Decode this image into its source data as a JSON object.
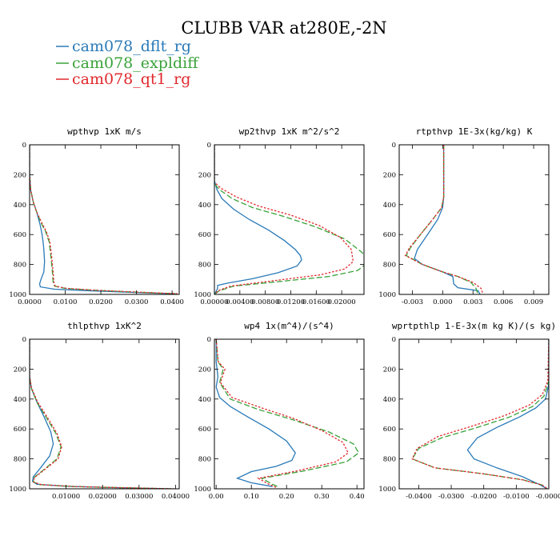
{
  "figure": {
    "title": "CLUBB VAR at280E,-2N",
    "legend": [
      {
        "name": "cam078_dflt_rg",
        "color": "#2a7ab8",
        "dash": "none"
      },
      {
        "name": "cam078_expldiff",
        "color": "#3aa23a",
        "dash": "7 3"
      },
      {
        "name": "cam078_qt1_rg",
        "color": "#e0282c",
        "dash": "2.5 2"
      }
    ]
  },
  "chart_data": [
    {
      "type": "line",
      "title": "wpthvp  1xK m/s",
      "xlim": [
        0,
        0.042
      ],
      "ylim": [
        1000,
        0
      ],
      "xticks": [
        0,
        0.01,
        0.02,
        0.03,
        0.04
      ],
      "xtick_labels": [
        "0.0000",
        "0.0100",
        "0.0200",
        "0.0300",
        "0.0400"
      ],
      "yticks": [
        0,
        200,
        400,
        600,
        800,
        1000
      ],
      "ytick_labels": [
        "0",
        "200",
        "400",
        "600",
        "800",
        "1000"
      ],
      "series": [
        {
          "name": "cam078_dflt_rg",
          "x": [
            0,
            0,
            0.0003,
            0.001,
            0.002,
            0.003,
            0.0035,
            0.0038,
            0.004,
            0.0042,
            0.004,
            0.0032,
            0.0028,
            0.003,
            0.007,
            0.016,
            0.025,
            0.033,
            0.04
          ],
          "y": [
            0,
            200,
            300,
            380,
            450,
            540,
            600,
            650,
            700,
            780,
            850,
            900,
            930,
            950,
            965,
            975,
            983,
            990,
            995
          ]
        },
        {
          "name": "cam078_expldiff",
          "x": [
            0,
            0,
            0.0003,
            0.001,
            0.002,
            0.0032,
            0.0045,
            0.0055,
            0.006,
            0.0064,
            0.0066,
            0.007,
            0.01,
            0.018,
            0.027,
            0.035,
            0.041
          ],
          "y": [
            0,
            200,
            300,
            380,
            450,
            520,
            580,
            650,
            750,
            850,
            920,
            945,
            960,
            972,
            982,
            990,
            995
          ]
        },
        {
          "name": "cam078_qt1_rg",
          "x": [
            0,
            0,
            0.0003,
            0.001,
            0.002,
            0.0034,
            0.0047,
            0.0057,
            0.0062,
            0.0066,
            0.0068,
            0.0072,
            0.0105,
            0.0185,
            0.0275,
            0.0355,
            0.0415
          ],
          "y": [
            0,
            200,
            300,
            380,
            450,
            520,
            580,
            650,
            750,
            850,
            920,
            945,
            960,
            972,
            982,
            990,
            995
          ]
        }
      ]
    },
    {
      "type": "line",
      "title": "wp2thvp  1xK m^2/s^2",
      "xlim": [
        0,
        0.0235
      ],
      "ylim": [
        1000,
        0
      ],
      "xticks": [
        0,
        0.004,
        0.008,
        0.012,
        0.016,
        0.02
      ],
      "xtick_labels": [
        "0.00000",
        "0.00400",
        "0.00800",
        "0.01200",
        "0.01600",
        "0.02000"
      ],
      "yticks": [
        0,
        200,
        400,
        600,
        800,
        1000
      ],
      "ytick_labels": [
        "0",
        "200",
        "400",
        "600",
        "800",
        "1000"
      ],
      "series": [
        {
          "name": "cam078_dflt_rg",
          "x": [
            0,
            0,
            0.0004,
            0.0012,
            0.003,
            0.0055,
            0.0085,
            0.011,
            0.0127,
            0.0135,
            0.0137,
            0.013,
            0.01,
            0.006,
            0.002,
            0.0005,
            0.0005,
            0.0002,
            0
          ],
          "y": [
            0,
            240,
            300,
            360,
            430,
            500,
            570,
            640,
            700,
            740,
            770,
            810,
            855,
            895,
            925,
            940,
            960,
            985,
            1000
          ]
        },
        {
          "name": "cam078_expldiff",
          "x": [
            0,
            0,
            0.0008,
            0.0028,
            0.006,
            0.011,
            0.016,
            0.0205,
            0.0232,
            0.024,
            0.0225,
            0.018,
            0.01,
            0.003,
            0.0008,
            0
          ],
          "y": [
            0,
            260,
            300,
            360,
            420,
            480,
            550,
            630,
            720,
            790,
            840,
            880,
            915,
            945,
            975,
            1000
          ]
        },
        {
          "name": "cam078_qt1_rg",
          "x": [
            0,
            0,
            0.001,
            0.0035,
            0.007,
            0.012,
            0.0165,
            0.0198,
            0.0215,
            0.0218,
            0.0205,
            0.0165,
            0.009,
            0.0025,
            0.0006,
            0
          ],
          "y": [
            0,
            250,
            290,
            350,
            410,
            470,
            540,
            620,
            700,
            780,
            830,
            870,
            910,
            945,
            975,
            1000
          ]
        }
      ]
    },
    {
      "type": "line",
      "title": "rtpthvp  1E-3x(kg/kg) K",
      "xlim": [
        -0.0043,
        0.0105
      ],
      "ylim": [
        1000,
        0
      ],
      "xticks": [
        -0.003,
        0,
        0.003,
        0.006,
        0.009
      ],
      "xtick_labels": [
        "-0.003",
        "0.000",
        "0.003",
        "0.006",
        "0.009"
      ],
      "yticks": [
        0,
        200,
        400,
        600,
        800,
        1000
      ],
      "ytick_labels": [
        "0",
        "200",
        "400",
        "600",
        "800",
        "1000"
      ],
      "series": [
        {
          "name": "cam078_dflt_rg",
          "x": [
            0.0001,
            0.0001,
            0,
            -0.0005,
            -0.0015,
            -0.0025,
            -0.0028,
            -0.002,
            0,
            0.001,
            0.0011,
            0.0015,
            0.0035,
            0.0037
          ],
          "y": [
            0,
            350,
            420,
            500,
            600,
            700,
            760,
            800,
            850,
            880,
            930,
            955,
            975,
            1000
          ]
        },
        {
          "name": "cam078_expldiff",
          "x": [
            0.0001,
            0.0001,
            -0.0001,
            -0.001,
            -0.0022,
            -0.0032,
            -0.0036,
            -0.002,
            0,
            0.0015,
            0.0028,
            0.0033,
            0.0035
          ],
          "y": [
            0,
            350,
            420,
            500,
            600,
            690,
            740,
            800,
            850,
            880,
            920,
            960,
            1000
          ]
        },
        {
          "name": "cam078_qt1_rg",
          "x": [
            0.0001,
            0.0001,
            -0.0001,
            -0.001,
            -0.0022,
            -0.0033,
            -0.0037,
            -0.002,
            0,
            0.0015,
            0.003,
            0.0038,
            0.004
          ],
          "y": [
            0,
            350,
            420,
            500,
            600,
            690,
            740,
            800,
            850,
            880,
            920,
            960,
            1000
          ]
        }
      ]
    },
    {
      "type": "line",
      "title": "thlpthvp  1xK^2",
      "xlim": [
        0,
        0.041
      ],
      "ylim": [
        1000,
        0
      ],
      "xticks": [
        0.01,
        0.02,
        0.03,
        0.04
      ],
      "xtick_labels": [
        "0.01000",
        "0.02000",
        "0.03000",
        "0.04000"
      ],
      "yticks": [
        0,
        200,
        400,
        600,
        800,
        1000
      ],
      "ytick_labels": [
        "0",
        "200",
        "400",
        "600",
        "800",
        "1000"
      ],
      "series": [
        {
          "name": "cam078_dflt_rg",
          "x": [
            0,
            0,
            0.0005,
            0.002,
            0.004,
            0.0058,
            0.0065,
            0.0055,
            0.003,
            0.001,
            0.0008,
            0.002,
            0.01,
            0.02,
            0.03,
            0.038
          ],
          "y": [
            0,
            250,
            330,
            420,
            520,
            620,
            700,
            780,
            860,
            920,
            950,
            970,
            983,
            990,
            995,
            1000
          ]
        },
        {
          "name": "cam078_expldiff",
          "x": [
            0,
            0,
            0.0005,
            0.002,
            0.0045,
            0.0072,
            0.0086,
            0.0075,
            0.004,
            0.0012,
            0.001,
            0.003,
            0.012,
            0.022,
            0.032,
            0.0395
          ],
          "y": [
            0,
            250,
            330,
            420,
            520,
            630,
            720,
            800,
            870,
            925,
            955,
            972,
            985,
            991,
            996,
            1000
          ]
        },
        {
          "name": "cam078_qt1_rg",
          "x": [
            0,
            0,
            0.0006,
            0.0022,
            0.0048,
            0.0075,
            0.0088,
            0.0078,
            0.0042,
            0.0013,
            0.0011,
            0.0032,
            0.0125,
            0.0225,
            0.0325,
            0.04
          ],
          "y": [
            0,
            250,
            330,
            420,
            520,
            630,
            720,
            800,
            870,
            925,
            955,
            972,
            985,
            991,
            996,
            1000
          ]
        }
      ]
    },
    {
      "type": "line",
      "title": "wp4  1x(m^4)/(s^4)",
      "xlim": [
        -0.005,
        0.42
      ],
      "ylim": [
        1000,
        0
      ],
      "xticks": [
        0,
        0.1,
        0.2,
        0.3,
        0.4
      ],
      "xtick_labels": [
        "0.00",
        "0.10",
        "0.20",
        "0.30",
        "0.40"
      ],
      "yticks": [
        0,
        200,
        400,
        600,
        800,
        1000
      ],
      "ytick_labels": [
        "0",
        "200",
        "400",
        "600",
        "800",
        "1000"
      ],
      "series": [
        {
          "name": "cam078_dflt_rg",
          "x": [
            0,
            0,
            0.005,
            0,
            0.01,
            0.04,
            0.09,
            0.15,
            0.2,
            0.225,
            0.215,
            0.17,
            0.1,
            0.06,
            0.1,
            0.16
          ],
          "y": [
            0,
            150,
            250,
            320,
            390,
            450,
            520,
            600,
            680,
            760,
            810,
            850,
            885,
            930,
            960,
            985
          ]
        },
        {
          "name": "cam078_expldiff",
          "x": [
            0,
            0.005,
            0.02,
            0.01,
            0.04,
            0.12,
            0.22,
            0.32,
            0.39,
            0.405,
            0.37,
            0.25,
            0.13,
            0.16,
            0.18
          ],
          "y": [
            0,
            150,
            200,
            290,
            400,
            470,
            540,
            620,
            700,
            760,
            820,
            880,
            930,
            970,
            990
          ]
        },
        {
          "name": "cam078_qt1_rg",
          "x": [
            0,
            0.006,
            0.025,
            0.012,
            0.045,
            0.13,
            0.22,
            0.3,
            0.36,
            0.375,
            0.34,
            0.23,
            0.12,
            0.15,
            0.17
          ],
          "y": [
            0,
            150,
            200,
            290,
            390,
            460,
            530,
            610,
            690,
            760,
            820,
            880,
            930,
            970,
            990
          ]
        }
      ]
    },
    {
      "type": "line",
      "title": "wprtpthlp  1-E-3x(m kg K)/(s kg)",
      "xlim": [
        -0.046,
        0
      ],
      "ylim": [
        1000,
        0
      ],
      "xticks": [
        -0.04,
        -0.03,
        -0.02,
        -0.01,
        0
      ],
      "xtick_labels": [
        "-0.0400",
        "-0.0300",
        "-0.0200",
        "-0.0100",
        "-0.0000"
      ],
      "yticks": [
        0,
        200,
        400,
        600,
        800,
        1000
      ],
      "ytick_labels": [
        "0",
        "200",
        "400",
        "600",
        "800",
        "1000"
      ],
      "series": [
        {
          "name": "cam078_dflt_rg",
          "x": [
            0,
            0,
            -0.001,
            -0.004,
            -0.009,
            -0.016,
            -0.022,
            -0.025,
            -0.023,
            -0.016,
            -0.008,
            -0.003,
            -0.0005
          ],
          "y": [
            0,
            300,
            400,
            460,
            520,
            590,
            660,
            740,
            800,
            860,
            920,
            970,
            1000
          ]
        },
        {
          "name": "cam078_expldiff",
          "x": [
            0,
            0,
            -0.0015,
            -0.005,
            -0.012,
            -0.022,
            -0.033,
            -0.04,
            -0.042,
            -0.035,
            -0.02,
            -0.008,
            -0.002,
            -0.0005
          ],
          "y": [
            0,
            280,
            380,
            450,
            520,
            590,
            660,
            730,
            800,
            860,
            900,
            940,
            975,
            1000
          ]
        },
        {
          "name": "cam078_qt1_rg",
          "x": [
            0,
            -0.0003,
            -0.002,
            -0.006,
            -0.0135,
            -0.0235,
            -0.034,
            -0.0405,
            -0.042,
            -0.035,
            -0.02,
            -0.008,
            -0.002,
            -0.0005
          ],
          "y": [
            0,
            280,
            370,
            440,
            510,
            580,
            650,
            730,
            800,
            860,
            900,
            940,
            975,
            1000
          ]
        }
      ]
    }
  ]
}
